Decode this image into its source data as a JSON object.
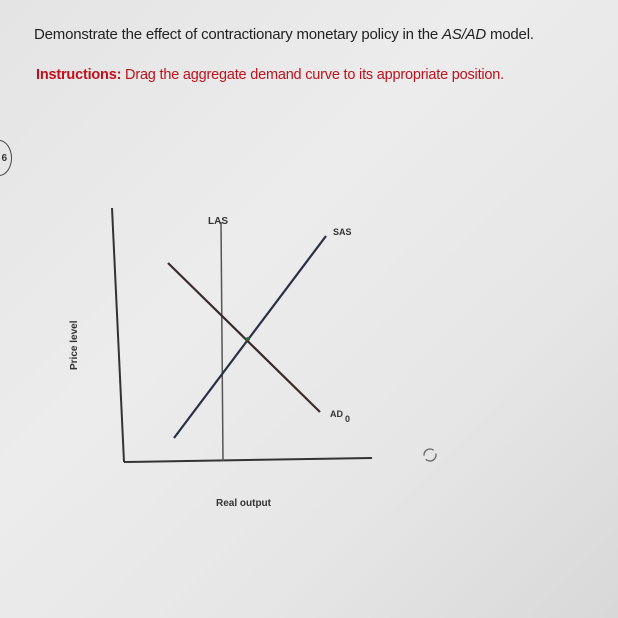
{
  "question": {
    "prefix": "Demonstrate the effect of contractionary monetary policy in the ",
    "model": "AS/AD",
    "suffix": " model."
  },
  "instructions": {
    "label": "Instructions:",
    "text": " Drag the aggregate demand curve to its appropriate position."
  },
  "question_number": "6",
  "graph": {
    "y_axis_label": "Price level",
    "x_axis_label": "Real output",
    "curves": {
      "las": "LAS",
      "sas": "SAS",
      "ad": "AD",
      "ad_subscript": "0"
    },
    "reset_icon": "reset-icon"
  }
}
